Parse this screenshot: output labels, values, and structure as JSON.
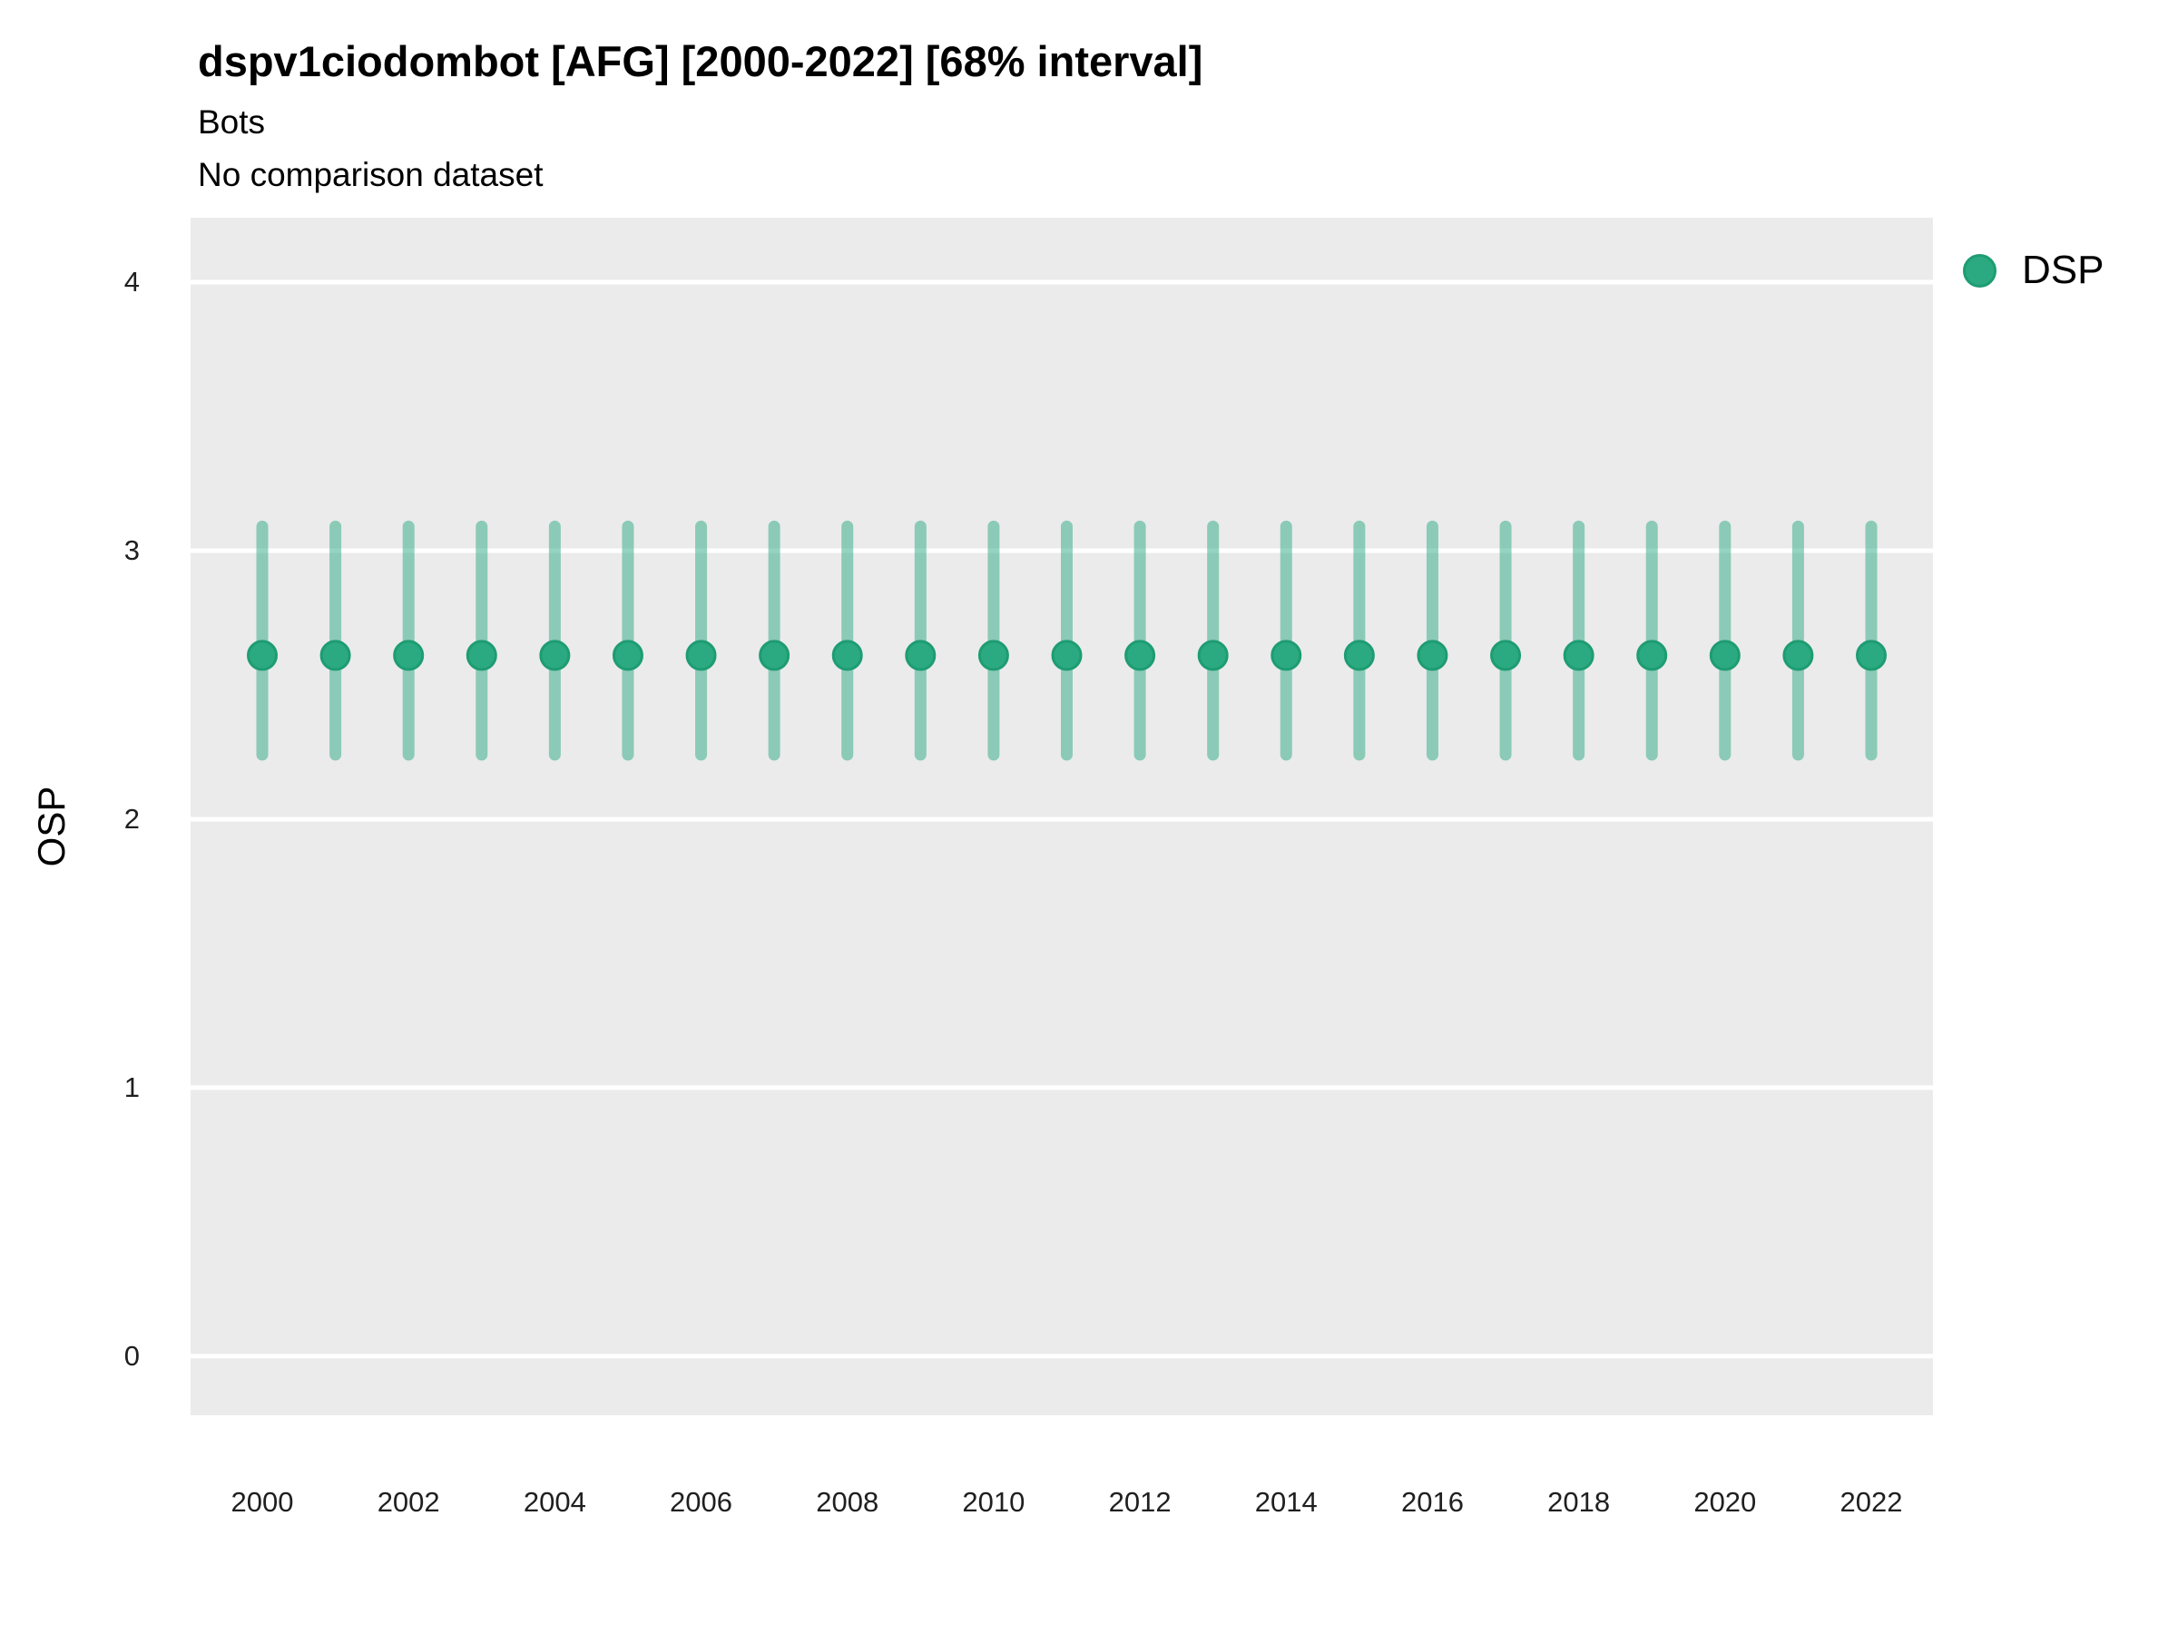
{
  "header": {
    "title": "dspv1ciodombot [AFG] [2000-2022] [68% interval]",
    "subtitle": "Bots",
    "subtitle2": "No comparison dataset"
  },
  "axes": {
    "y_label": "OSP",
    "y_ticks": [
      0,
      1,
      2,
      3,
      4
    ],
    "x_ticks": [
      2000,
      2002,
      2004,
      2006,
      2008,
      2010,
      2012,
      2014,
      2016,
      2018,
      2020,
      2022
    ]
  },
  "legend": {
    "items": [
      {
        "label": "DSP",
        "color": "#2BAA81"
      }
    ]
  },
  "colors": {
    "panel_bg": "#EBEBEB",
    "gridline": "#FFFFFF",
    "point": "#2BAA81",
    "point_ring": "#1E9C72",
    "interval": "rgba(43,170,129,0.5)",
    "text": "#000000",
    "tick_text": "#1F1F1F"
  },
  "chart_data": {
    "type": "scatter",
    "subtype": "pointrange",
    "title": "dspv1ciodombot [AFG] [2000-2022] [68% interval]",
    "subtitle": "Bots",
    "note": "No comparison dataset",
    "xlabel": "",
    "ylabel": "OSP",
    "interval_label": "68% interval",
    "ylim": [
      -0.22,
      4.24
    ],
    "grid": "major-y-only",
    "legend_position": "right",
    "x": [
      2000,
      2001,
      2002,
      2003,
      2004,
      2005,
      2006,
      2007,
      2008,
      2009,
      2010,
      2011,
      2012,
      2013,
      2014,
      2015,
      2016,
      2017,
      2018,
      2019,
      2020,
      2021,
      2022
    ],
    "series": [
      {
        "name": "DSP",
        "values": [
          2.61,
          2.61,
          2.61,
          2.61,
          2.61,
          2.61,
          2.61,
          2.61,
          2.61,
          2.61,
          2.61,
          2.61,
          2.61,
          2.61,
          2.61,
          2.61,
          2.61,
          2.61,
          2.61,
          2.61,
          2.61,
          2.61,
          2.61
        ],
        "lower": [
          2.24,
          2.24,
          2.24,
          2.24,
          2.24,
          2.24,
          2.24,
          2.24,
          2.24,
          2.24,
          2.24,
          2.24,
          2.24,
          2.24,
          2.24,
          2.24,
          2.24,
          2.24,
          2.24,
          2.24,
          2.24,
          2.24,
          2.24
        ],
        "upper": [
          3.09,
          3.09,
          3.09,
          3.09,
          3.09,
          3.09,
          3.09,
          3.09,
          3.09,
          3.09,
          3.09,
          3.09,
          3.09,
          3.09,
          3.09,
          3.09,
          3.09,
          3.09,
          3.09,
          3.09,
          3.09,
          3.09,
          3.09
        ]
      }
    ]
  }
}
